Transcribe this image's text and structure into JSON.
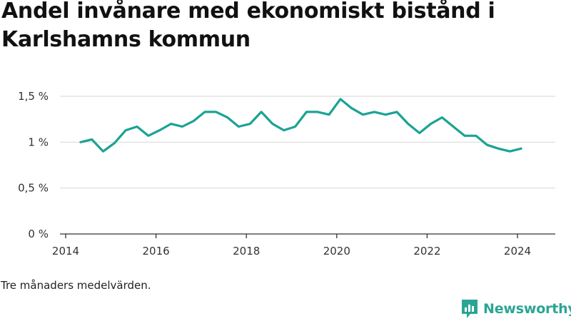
{
  "chart_data": {
    "type": "line",
    "title": "Andel invånare med ekonomiskt bistånd i Karlshamns kommun",
    "xlabel": "",
    "ylabel": "",
    "xlim": [
      2014,
      2024.6
    ],
    "ylim": [
      0,
      1.5
    ],
    "x_ticks": [
      2014,
      2016,
      2018,
      2020,
      2022,
      2024
    ],
    "x_tick_labels": [
      "2014",
      "2016",
      "2018",
      "2020",
      "2022",
      "2024"
    ],
    "y_ticks": [
      0,
      0.5,
      1,
      1.5
    ],
    "y_tick_labels": [
      "0 %",
      "0,5 %",
      "1 %",
      "1,5 %"
    ],
    "grid": true,
    "series": [
      {
        "color": "#1aa394",
        "x": [
          2014.33,
          2014.58,
          2014.83,
          2015.08,
          2015.33,
          2015.58,
          2015.83,
          2016.08,
          2016.33,
          2016.58,
          2016.83,
          2017.08,
          2017.33,
          2017.58,
          2017.83,
          2018.08,
          2018.33,
          2018.58,
          2018.83,
          2019.08,
          2019.33,
          2019.58,
          2019.83,
          2020.08,
          2020.33,
          2020.58,
          2020.83,
          2021.08,
          2021.33,
          2021.58,
          2021.83,
          2022.08,
          2022.33,
          2022.58,
          2022.83,
          2023.08,
          2023.33,
          2023.58,
          2023.83,
          2024.08
        ],
        "y": [
          1.0,
          1.03,
          0.9,
          0.99,
          1.13,
          1.17,
          1.07,
          1.13,
          1.2,
          1.17,
          1.23,
          1.33,
          1.33,
          1.27,
          1.17,
          1.2,
          1.33,
          1.2,
          1.13,
          1.17,
          1.33,
          1.33,
          1.3,
          1.47,
          1.37,
          1.3,
          1.33,
          1.3,
          1.33,
          1.2,
          1.1,
          1.2,
          1.27,
          1.17,
          1.07,
          1.07,
          0.97,
          0.93,
          0.9,
          0.93
        ]
      }
    ]
  },
  "footnote": "Tre månaders medelvärden.",
  "brand": {
    "name": "Newsworthy",
    "color": "#2aa595"
  }
}
